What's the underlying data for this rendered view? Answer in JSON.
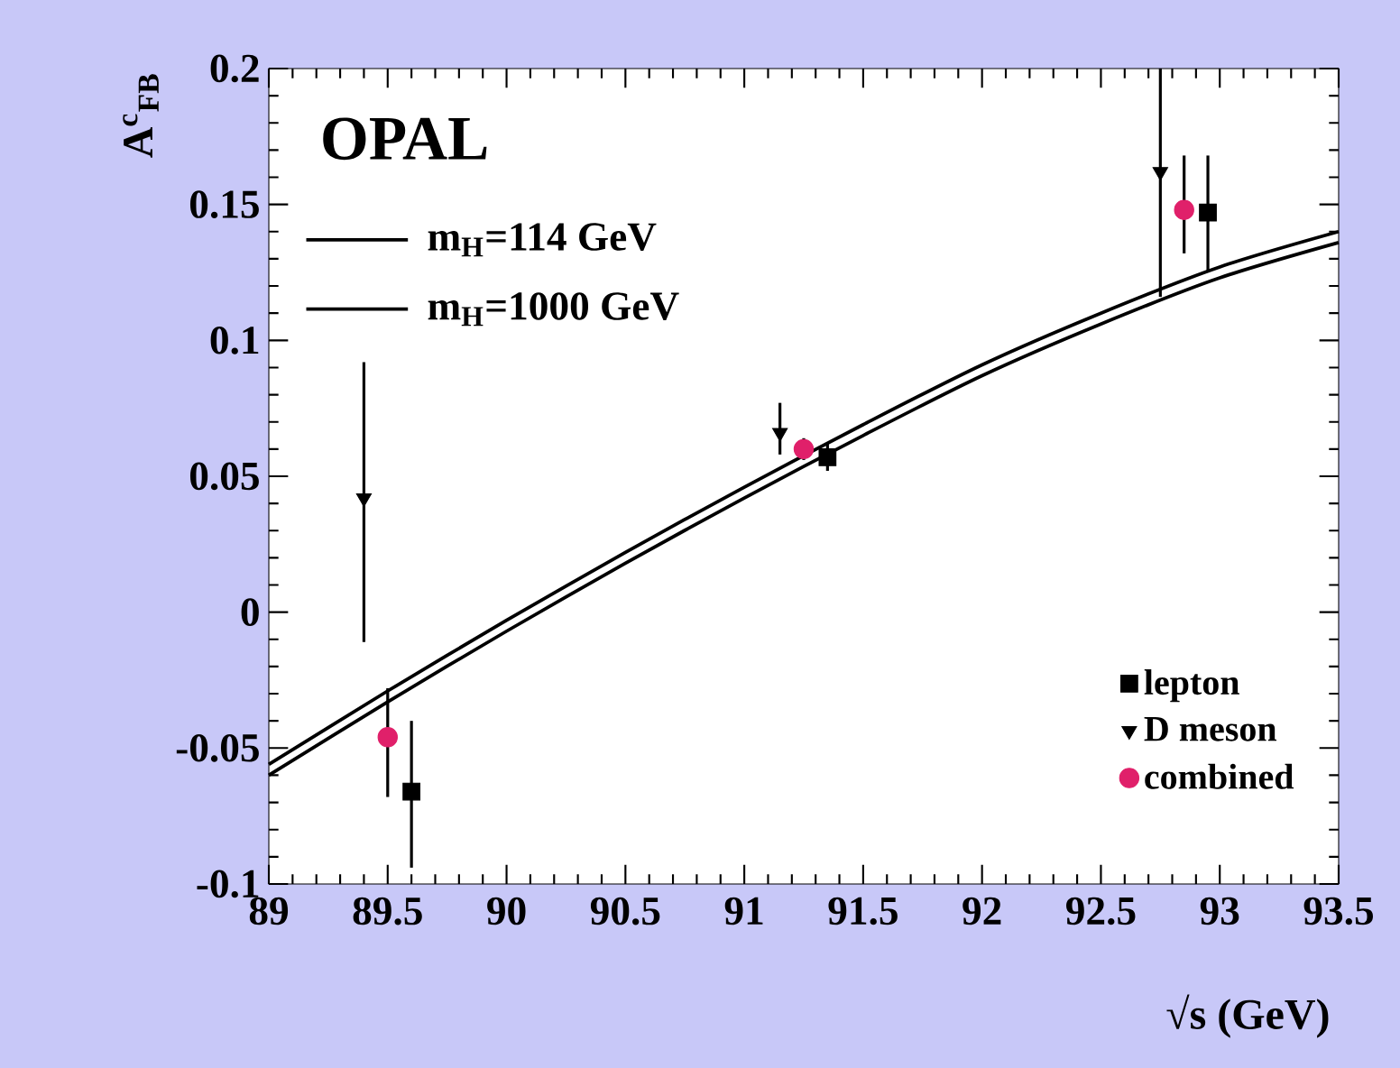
{
  "chart_data": {
    "type": "scatter",
    "xlabel": "√s (GeV)",
    "ylabel": "A$^{c}$$_{FB}$",
    "annotations": [
      "OPAL"
    ],
    "xlim": [
      89,
      93.5
    ],
    "ylim": [
      -0.1,
      0.2
    ],
    "xticks": [
      89,
      89.5,
      90,
      90.5,
      91,
      91.5,
      92,
      92.5,
      93,
      93.5
    ],
    "yticks": [
      -0.1,
      -0.05,
      0,
      0.05,
      0.1,
      0.15,
      0.2
    ],
    "legend": "bottom right",
    "series": [
      {
        "type": "line",
        "name": "m$_{H}$=114 GeV",
        "color": "#000000",
        "x": [
          89,
          89.5,
          90,
          90.5,
          91,
          91.5,
          92,
          92.5,
          93,
          93.5
        ],
        "values": [
          -0.056,
          -0.029,
          -0.003,
          0.022,
          0.046,
          0.069,
          0.091,
          0.11,
          0.127,
          0.14
        ]
      },
      {
        "type": "line",
        "name": "m$_{H}$=1000 GeV",
        "color": "#000000",
        "x": [
          89,
          89.5,
          90,
          90.5,
          91,
          91.5,
          92,
          92.5,
          93,
          93.5
        ],
        "values": [
          -0.06,
          -0.033,
          -0.007,
          0.018,
          0.042,
          0.065,
          0.087,
          0.106,
          0.123,
          0.136
        ]
      },
      {
        "name": "lepton",
        "color": "#000000",
        "marker": "square",
        "x": [
          89.6,
          91.35,
          92.95
        ],
        "values": [
          -0.066,
          0.057,
          0.147
        ],
        "errors": [
          [
            -0.094,
            -0.04
          ],
          [
            0.052,
            0.062
          ],
          [
            0.125,
            0.168
          ]
        ]
      },
      {
        "name": "D meson",
        "color": "#000000",
        "marker": "triangle",
        "x": [
          89.4,
          91.15,
          92.75
        ],
        "values": [
          0.042,
          0.066,
          0.162
        ],
        "errors": [
          [
            -0.011,
            0.092
          ],
          [
            0.058,
            0.077
          ],
          [
            0.116,
            0.2
          ]
        ]
      },
      {
        "name": "combined",
        "color": "#e0206a",
        "marker": "circle",
        "x": [
          89.5,
          91.25,
          92.85
        ],
        "values": [
          -0.046,
          0.06,
          0.148
        ],
        "errors": [
          [
            -0.068,
            -0.028
          ],
          [
            0.056,
            0.064
          ],
          [
            0.132,
            0.168
          ]
        ]
      }
    ]
  }
}
